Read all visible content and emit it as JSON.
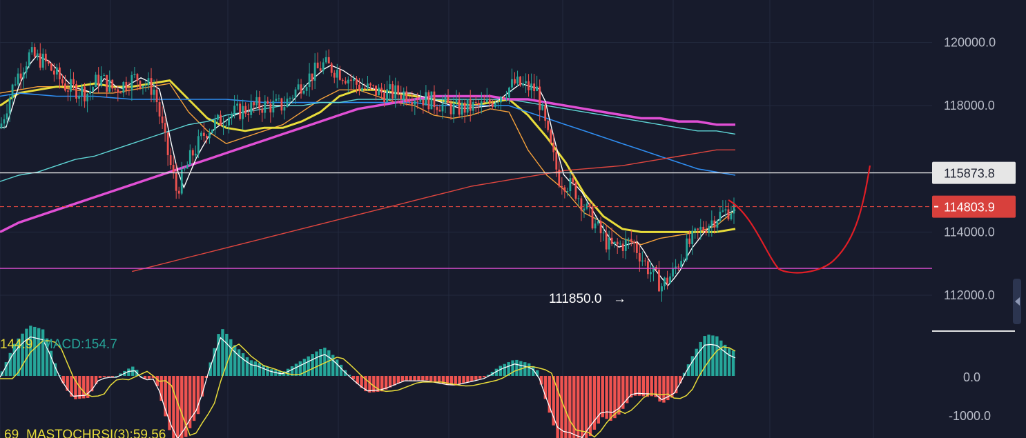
{
  "chart_data": {
    "type": "candlestick",
    "price_axis": {
      "ticks": [
        120000,
        118000,
        114000,
        112000
      ],
      "tick_labels": [
        "120000.0",
        "118000.0",
        "114000.0",
        "112000.0"
      ],
      "range": [
        111000,
        121000
      ]
    },
    "horizontal_levels": [
      {
        "value": 115873.8,
        "label": "115873.8",
        "color": "#e6e6e6",
        "style": "solid"
      },
      {
        "value": 114803.9,
        "label": "114803.9",
        "color": "#e0463f",
        "style": "dashed"
      },
      {
        "value": 112850,
        "color": "#e04fd4",
        "style": "solid"
      }
    ],
    "annotation_low": {
      "value": 111850,
      "label": "111850.0",
      "arrow": "→"
    },
    "indicator_text": {
      "macd_left": "144.9",
      "macd": "MACD:154.7",
      "stoch_left": "69",
      "stoch": "MASTOCHRSI(3):59.56"
    },
    "macd_axis": {
      "tick_labels": [
        "0.0",
        "-1000.0"
      ],
      "ticks": [
        0,
        -1000
      ],
      "range": [
        -1200,
        600
      ]
    },
    "colors": {
      "bull": "#26a69a",
      "bear": "#ef5350",
      "ma_white": "#ffffff",
      "ma_orange": "#f7a23b",
      "ma_yellow": "#e8dc3a",
      "ma_blue": "#2f8ef2",
      "ma_cyan": "#5fd6d6",
      "ma_magenta": "#e04fd4",
      "ma_red": "#e0463f",
      "projection": "#e01e26"
    },
    "key_path": [
      [
        0,
        117300
      ],
      [
        0.02,
        118800
      ],
      [
        0.04,
        119600
      ],
      [
        0.06,
        119400
      ],
      [
        0.09,
        118600
      ],
      [
        0.12,
        118400
      ],
      [
        0.135,
        118900
      ],
      [
        0.155,
        118500
      ],
      [
        0.185,
        118900
      ],
      [
        0.21,
        118500
      ],
      [
        0.225,
        116800
      ],
      [
        0.24,
        115300
      ],
      [
        0.26,
        116400
      ],
      [
        0.28,
        117200
      ],
      [
        0.31,
        117700
      ],
      [
        0.35,
        118000
      ],
      [
        0.385,
        118000
      ],
      [
        0.41,
        118700
      ],
      [
        0.44,
        119300
      ],
      [
        0.46,
        119100
      ],
      [
        0.49,
        118600
      ],
      [
        0.52,
        118400
      ],
      [
        0.55,
        118400
      ],
      [
        0.58,
        118200
      ],
      [
        0.62,
        117900
      ],
      [
        0.66,
        118000
      ],
      [
        0.7,
        118700
      ],
      [
        0.73,
        118500
      ],
      [
        0.745,
        117000
      ],
      [
        0.76,
        115700
      ],
      [
        0.78,
        115400
      ],
      [
        0.81,
        114200
      ],
      [
        0.83,
        113500
      ],
      [
        0.86,
        113700
      ],
      [
        0.88,
        112900
      ],
      [
        0.9,
        112300
      ],
      [
        0.915,
        112700
      ],
      [
        0.93,
        113400
      ],
      [
        0.95,
        114000
      ],
      [
        0.975,
        114500
      ],
      [
        1.0,
        114800
      ]
    ],
    "moving_averages": [
      {
        "name": "",
        "color_key": "ma_orange",
        "values": [
          118400,
          118500,
          118600,
          118600,
          118500,
          118400,
          118400,
          118500,
          118600,
          118700,
          117800,
          117200,
          116800,
          117000,
          117200,
          117400,
          117800,
          118200,
          118500,
          118500,
          118300,
          118100,
          118000,
          117700,
          117600,
          117700,
          117900,
          117800,
          116600,
          115800,
          115300,
          114600,
          114300,
          113800,
          113600,
          113800,
          113900,
          114000,
          114200,
          114700
        ]
      },
      {
        "name": "",
        "color_key": "ma_yellow",
        "values": [
          118000,
          118400,
          118500,
          118600,
          118600,
          118700,
          118600,
          118600,
          118700,
          118800,
          118200,
          117600,
          117300,
          117200,
          117300,
          117300,
          117500,
          117800,
          118300,
          118500,
          118500,
          118400,
          118300,
          118200,
          118100,
          118000,
          118100,
          118200,
          117700,
          117000,
          116200,
          115200,
          114500,
          114100,
          114000,
          114000,
          114000,
          114000,
          114000,
          114100
        ]
      },
      {
        "name": "",
        "color_key": "ma_blue",
        "values": [
          118300,
          118400,
          118350,
          118300,
          118300,
          118300,
          118250,
          118200,
          118200,
          118200,
          118200,
          118200,
          118200,
          118150,
          118100,
          118100,
          118100,
          118100,
          118100,
          118100,
          118100,
          118100,
          118100,
          118000,
          118000,
          118000,
          118000,
          118000,
          117800,
          117600,
          117400,
          117200,
          117000,
          116800,
          116600,
          116400,
          116200,
          116000,
          115900,
          115800
        ]
      },
      {
        "name": "",
        "color_key": "ma_cyan",
        "values": [
          115600,
          115800,
          115900,
          116100,
          116300,
          116400,
          116600,
          116800,
          117000,
          117200,
          117400,
          117500,
          117700,
          117800,
          117900,
          118000,
          118000,
          118100,
          118100,
          118200,
          118200,
          118200,
          118200,
          118200,
          118200,
          118200,
          118200,
          118200,
          118100,
          118000,
          117900,
          117800,
          117700,
          117600,
          117500,
          117400,
          117300,
          117200,
          117200,
          117100
        ]
      },
      {
        "name": "",
        "color_key": "ma_magenta",
        "values": [
          114000,
          114300,
          114500,
          114700,
          114900,
          115100,
          115300,
          115500,
          115700,
          115900,
          116100,
          116300,
          116500,
          116700,
          116900,
          117100,
          117300,
          117500,
          117700,
          117900,
          118000,
          118100,
          118200,
          118300,
          118300,
          118300,
          118300,
          118200,
          118200,
          118100,
          118000,
          117900,
          117800,
          117700,
          117600,
          117600,
          117500,
          117500,
          117400,
          117400
        ]
      },
      {
        "name": "",
        "color_key": "ma_red",
        "values": [
          null,
          null,
          null,
          null,
          null,
          null,
          null,
          112750,
          112900,
          113050,
          113200,
          113350,
          113500,
          113650,
          113800,
          113950,
          114100,
          114250,
          114400,
          114550,
          114700,
          114850,
          115000,
          115150,
          115300,
          115450,
          115550,
          115650,
          115750,
          115850,
          115950,
          116000,
          116050,
          116100,
          116200,
          116300,
          116400,
          116500,
          116600,
          116600
        ]
      }
    ]
  }
}
